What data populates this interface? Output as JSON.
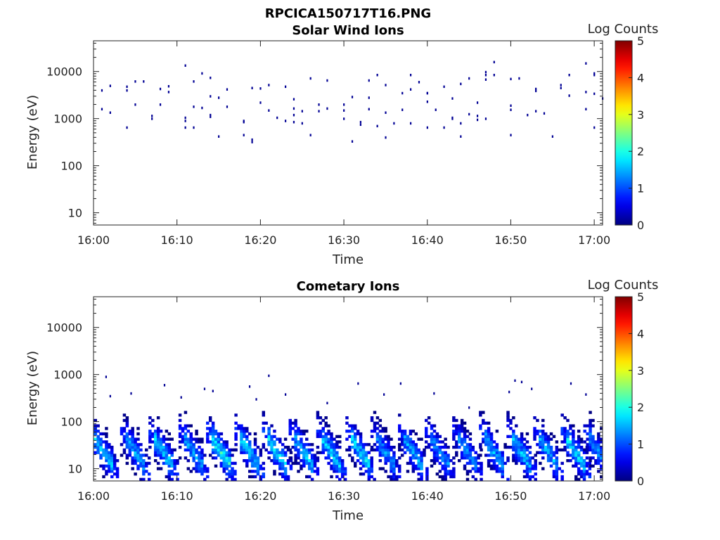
{
  "figure": {
    "title": "RPCICA150717T16.PNG"
  },
  "chart_data": [
    {
      "type": "heatmap",
      "title": "Solar Wind Ions",
      "xlabel": "Time",
      "ylabel": "Energy (eV)",
      "x_range": [
        "16:00",
        "17:01"
      ],
      "x_ticks": [
        "16:00",
        "16:10",
        "16:20",
        "16:30",
        "16:40",
        "16:50",
        "17:00"
      ],
      "y_scale": "log",
      "y_range": [
        5.5,
        45000
      ],
      "y_ticks": [
        "10",
        "100",
        "1000",
        "10000"
      ],
      "colorbar": {
        "label": "Log Counts",
        "range": [
          0,
          5
        ],
        "ticks": [
          "0",
          "1",
          "2",
          "3",
          "4",
          "5"
        ],
        "colormap": "jet"
      },
      "grid": false,
      "note_values": "scattered single-count cells (log counts ~0) between ~300 eV and ~16000 eV",
      "points": [
        {
          "t": "16:01",
          "e": 4000
        },
        {
          "t": "16:01",
          "e": 1600
        },
        {
          "t": "16:02",
          "e": 5000
        },
        {
          "t": "16:02",
          "e": 1350
        },
        {
          "t": "16:04",
          "e": 4800
        },
        {
          "t": "16:04",
          "e": 4000
        },
        {
          "t": "16:04",
          "e": 650
        },
        {
          "t": "16:05",
          "e": 2000
        },
        {
          "t": "16:05",
          "e": 6200
        },
        {
          "t": "16:06",
          "e": 6200
        },
        {
          "t": "16:07",
          "e": 1150
        },
        {
          "t": "16:07",
          "e": 1000
        },
        {
          "t": "16:08",
          "e": 4300
        },
        {
          "t": "16:08",
          "e": 2000
        },
        {
          "t": "16:09",
          "e": 3700
        },
        {
          "t": "16:09",
          "e": 4900
        },
        {
          "t": "16:11",
          "e": 13500
        },
        {
          "t": "16:11",
          "e": 1050
        },
        {
          "t": "16:11",
          "e": 650
        },
        {
          "t": "16:11",
          "e": 900
        },
        {
          "t": "16:12",
          "e": 1800
        },
        {
          "t": "16:12",
          "e": 650
        },
        {
          "t": "16:12",
          "e": 6200
        },
        {
          "t": "16:13",
          "e": 1700
        },
        {
          "t": "16:13",
          "e": 9200
        },
        {
          "t": "16:14",
          "e": 7400
        },
        {
          "t": "16:14",
          "e": 3000
        },
        {
          "t": "16:14",
          "e": 1100
        },
        {
          "t": "16:14",
          "e": 1200
        },
        {
          "t": "16:15",
          "e": 2800
        },
        {
          "t": "16:15",
          "e": 420
        },
        {
          "t": "16:16",
          "e": 4200
        },
        {
          "t": "16:16",
          "e": 1800
        },
        {
          "t": "16:18",
          "e": 900
        },
        {
          "t": "16:18",
          "e": 850
        },
        {
          "t": "16:18",
          "e": 450
        },
        {
          "t": "16:19",
          "e": 360
        },
        {
          "t": "16:19",
          "e": 320
        },
        {
          "t": "16:19",
          "e": 4500
        },
        {
          "t": "16:20",
          "e": 4400
        },
        {
          "t": "16:20",
          "e": 2200
        },
        {
          "t": "16:21",
          "e": 1500
        },
        {
          "t": "16:21",
          "e": 5200
        },
        {
          "t": "16:22",
          "e": 1050
        },
        {
          "t": "16:23",
          "e": 900
        },
        {
          "t": "16:23",
          "e": 4800
        },
        {
          "t": "16:24",
          "e": 2600
        },
        {
          "t": "16:24",
          "e": 1650
        },
        {
          "t": "16:24",
          "e": 1200
        },
        {
          "t": "16:24",
          "e": 850
        },
        {
          "t": "16:25",
          "e": 800
        },
        {
          "t": "16:25",
          "e": 1450
        },
        {
          "t": "16:26",
          "e": 7200
        },
        {
          "t": "16:26",
          "e": 450
        },
        {
          "t": "16:27",
          "e": 2000
        },
        {
          "t": "16:27",
          "e": 1450
        },
        {
          "t": "16:28",
          "e": 1650
        },
        {
          "t": "16:28",
          "e": 6500
        },
        {
          "t": "16:30",
          "e": 2000
        },
        {
          "t": "16:30",
          "e": 1500
        },
        {
          "t": "16:30",
          "e": 1000
        },
        {
          "t": "16:31",
          "e": 330
        },
        {
          "t": "16:31",
          "e": 2900
        },
        {
          "t": "16:32",
          "e": 850
        },
        {
          "t": "16:32",
          "e": 750
        },
        {
          "t": "16:33",
          "e": 1600
        },
        {
          "t": "16:33",
          "e": 2800
        },
        {
          "t": "16:33",
          "e": 6500
        },
        {
          "t": "16:34",
          "e": 8500
        },
        {
          "t": "16:34",
          "e": 700
        },
        {
          "t": "16:35",
          "e": 1350
        },
        {
          "t": "16:35",
          "e": 5200
        },
        {
          "t": "16:35",
          "e": 400
        },
        {
          "t": "16:36",
          "e": 800
        },
        {
          "t": "16:37",
          "e": 1550
        },
        {
          "t": "16:37",
          "e": 3500
        },
        {
          "t": "16:38",
          "e": 8500
        },
        {
          "t": "16:38",
          "e": 4200
        },
        {
          "t": "16:38",
          "e": 800
        },
        {
          "t": "16:39",
          "e": 6000
        },
        {
          "t": "16:40",
          "e": 3500
        },
        {
          "t": "16:40",
          "e": 2300
        },
        {
          "t": "16:40",
          "e": 650
        },
        {
          "t": "16:40",
          "e": 3500
        },
        {
          "t": "16:41",
          "e": 1550
        },
        {
          "t": "16:42",
          "e": 650
        },
        {
          "t": "16:42",
          "e": 4800
        },
        {
          "t": "16:43",
          "e": 1050
        },
        {
          "t": "16:43",
          "e": 2700
        },
        {
          "t": "16:43",
          "e": 1000
        },
        {
          "t": "16:44",
          "e": 5500
        },
        {
          "t": "16:44",
          "e": 800
        },
        {
          "t": "16:44",
          "e": 420
        },
        {
          "t": "16:45",
          "e": 7200
        },
        {
          "t": "16:45",
          "e": 1250
        },
        {
          "t": "16:46",
          "e": 2200
        },
        {
          "t": "16:46",
          "e": 950
        },
        {
          "t": "16:46",
          "e": 1150
        },
        {
          "t": "16:47",
          "e": 9800
        },
        {
          "t": "16:47",
          "e": 8500
        },
        {
          "t": "16:47",
          "e": 6800
        },
        {
          "t": "16:47",
          "e": 1000
        },
        {
          "t": "16:48",
          "e": 8500
        },
        {
          "t": "16:48",
          "e": 16000
        },
        {
          "t": "16:50",
          "e": 7000
        },
        {
          "t": "16:50",
          "e": 1900
        },
        {
          "t": "16:50",
          "e": 1550
        },
        {
          "t": "16:50",
          "e": 450
        },
        {
          "t": "16:51",
          "e": 7200
        },
        {
          "t": "16:52",
          "e": 1200
        },
        {
          "t": "16:53",
          "e": 3900
        },
        {
          "t": "16:53",
          "e": 4300
        },
        {
          "t": "16:53",
          "e": 1450
        },
        {
          "t": "16:54",
          "e": 1300
        },
        {
          "t": "16:55",
          "e": 420
        },
        {
          "t": "16:56",
          "e": 5200
        },
        {
          "t": "16:56",
          "e": 4500
        },
        {
          "t": "16:57",
          "e": 3100
        },
        {
          "t": "16:57",
          "e": 8500
        },
        {
          "t": "16:59",
          "e": 3700
        },
        {
          "t": "16:59",
          "e": 1600
        },
        {
          "t": "16:59",
          "e": 15000
        },
        {
          "t": "17:00",
          "e": 3400
        },
        {
          "t": "17:00",
          "e": 8500
        },
        {
          "t": "17:00",
          "e": 9200
        },
        {
          "t": "17:00",
          "e": 650
        },
        {
          "t": "17:01",
          "e": 2700
        }
      ]
    },
    {
      "type": "heatmap",
      "title": "Cometary Ions",
      "xlabel": "Time",
      "ylabel": "Energy (eV)",
      "x_range": [
        "16:00",
        "17:01"
      ],
      "x_ticks": [
        "16:00",
        "16:10",
        "16:20",
        "16:30",
        "16:40",
        "16:50",
        "17:00"
      ],
      "y_scale": "log",
      "y_range": [
        5.5,
        45000
      ],
      "y_ticks": [
        "10",
        "100",
        "1000",
        "10000"
      ],
      "colorbar": {
        "label": "Log Counts",
        "range": [
          0,
          5
        ],
        "ticks": [
          "0",
          "1",
          "2",
          "3",
          "4",
          "5"
        ],
        "colormap": "jet"
      },
      "grid": false,
      "note_values": "periodic bursts (~3.3 min period) from ~5 eV up to ~150 eV, peak log counts ~1.5-2.2 near 20-40 eV; sparse counts up to ~1000 eV",
      "bursts": [
        {
          "t": "16:01.2",
          "peak_log": 1.8
        },
        {
          "t": "16:05.0",
          "peak_log": 1.6
        },
        {
          "t": "16:08.4",
          "peak_log": 1.9
        },
        {
          "t": "16:12.0",
          "peak_log": 1.7
        },
        {
          "t": "16:15.3",
          "peak_log": 2.2
        },
        {
          "t": "16:18.7",
          "peak_log": 1.9
        },
        {
          "t": "16:22.0",
          "peak_log": 2.0
        },
        {
          "t": "16:25.2",
          "peak_log": 1.8
        },
        {
          "t": "16:28.5",
          "peak_log": 1.9
        },
        {
          "t": "16:32.0",
          "peak_log": 1.9
        },
        {
          "t": "16:35.0",
          "peak_log": 1.5
        },
        {
          "t": "16:38.3",
          "peak_log": 1.7
        },
        {
          "t": "16:41.5",
          "peak_log": 1.5
        },
        {
          "t": "16:44.8",
          "peak_log": 1.5
        },
        {
          "t": "16:48.0",
          "peak_log": 1.8
        },
        {
          "t": "16:51.3",
          "peak_log": 1.8
        },
        {
          "t": "16:54.5",
          "peak_log": 1.7
        },
        {
          "t": "16:57.8",
          "peak_log": 2.0
        },
        {
          "t": "17:00.5",
          "peak_log": 1.6
        }
      ],
      "high_energy_points": [
        {
          "t": "16:01.5",
          "e": 900
        },
        {
          "t": "16:02",
          "e": 350
        },
        {
          "t": "16:04.5",
          "e": 400
        },
        {
          "t": "16:08.5",
          "e": 600
        },
        {
          "t": "16:10.5",
          "e": 330
        },
        {
          "t": "16:13.3",
          "e": 500
        },
        {
          "t": "16:14.3",
          "e": 450
        },
        {
          "t": "16:18.7",
          "e": 560
        },
        {
          "t": "16:21",
          "e": 950
        },
        {
          "t": "16:19.5",
          "e": 300
        },
        {
          "t": "16:23",
          "e": 380
        },
        {
          "t": "16:28",
          "e": 250
        },
        {
          "t": "16:31.7",
          "e": 650
        },
        {
          "t": "16:34.8",
          "e": 380
        },
        {
          "t": "16:36.8",
          "e": 650
        },
        {
          "t": "16:40.8",
          "e": 400
        },
        {
          "t": "16:45",
          "e": 200
        },
        {
          "t": "16:49.8",
          "e": 430
        },
        {
          "t": "16:50.5",
          "e": 750
        },
        {
          "t": "16:51.3",
          "e": 700
        },
        {
          "t": "16:52.5",
          "e": 500
        },
        {
          "t": "16:57.2",
          "e": 650
        },
        {
          "t": "16:59",
          "e": 380
        }
      ]
    }
  ]
}
